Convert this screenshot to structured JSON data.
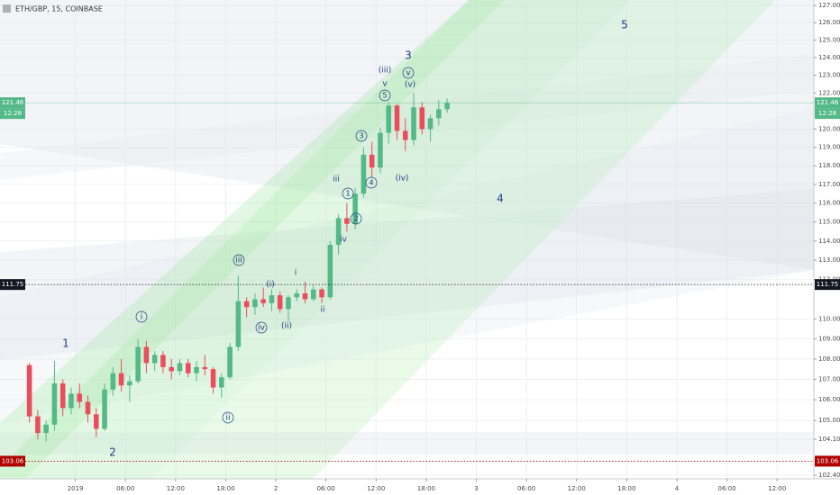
{
  "chart_data": {
    "type": "candlestick",
    "title": "ETH/GBP, 15, COINBASE",
    "log_scale": true,
    "grid": true,
    "up_color": "#53b987",
    "down_color": "#eb4d5c",
    "ylim": [
      102.4,
      127
    ],
    "yticks": [
      {
        "value": 127,
        "label": "127.00"
      },
      {
        "value": 126,
        "label": "126.00"
      },
      {
        "value": 125,
        "label": "125.00"
      },
      {
        "value": 124,
        "label": "124.00"
      },
      {
        "value": 123,
        "label": "123.00"
      },
      {
        "value": 122,
        "label": "122.00"
      },
      {
        "value": 120,
        "label": "120.00"
      },
      {
        "value": 119,
        "label": "119.00"
      },
      {
        "value": 118,
        "label": "118.00"
      },
      {
        "value": 117,
        "label": "117.00"
      },
      {
        "value": 116,
        "label": "116.00"
      },
      {
        "value": 115,
        "label": "115.00"
      },
      {
        "value": 114,
        "label": "114.00"
      },
      {
        "value": 113,
        "label": "113.00"
      },
      {
        "value": 112,
        "label": "112.00"
      },
      {
        "value": 110,
        "label": "110.00"
      },
      {
        "value": 109,
        "label": "109.00"
      },
      {
        "value": 108,
        "label": "108.00"
      },
      {
        "value": 107,
        "label": "107.00"
      },
      {
        "value": 106,
        "label": "106.00"
      },
      {
        "value": 105,
        "label": "105.00"
      },
      {
        "value": 104.1,
        "label": "104.10"
      },
      {
        "value": 102.4,
        "label": "102.40"
      }
    ],
    "xlim": [
      0,
      94.4
    ],
    "xticks": [
      {
        "value": 6,
        "label": "2019"
      },
      {
        "value": 12,
        "label": "06:00"
      },
      {
        "value": 18,
        "label": "12:00"
      },
      {
        "value": 24,
        "label": "18:00"
      },
      {
        "value": 30,
        "label": "2"
      },
      {
        "value": 36,
        "label": "06:00"
      },
      {
        "value": 42,
        "label": "12:00"
      },
      {
        "value": 48,
        "label": "18:00"
      },
      {
        "value": 54,
        "label": "3"
      },
      {
        "value": 60,
        "label": "06:00"
      },
      {
        "value": 66,
        "label": "12:00"
      },
      {
        "value": 72,
        "label": "18:00"
      },
      {
        "value": 78,
        "label": "4"
      },
      {
        "value": 84,
        "label": "06:00"
      },
      {
        "value": 90,
        "label": "12:00"
      }
    ],
    "x": [
      0.5,
      1.5,
      2.5,
      3.5,
      4.5,
      5.5,
      6.5,
      7.5,
      8.5,
      9.5,
      10.5,
      11.5,
      12.5,
      13.5,
      14.5,
      15.5,
      16.5,
      17.5,
      18.5,
      19.5,
      20.5,
      21.5,
      22.5,
      23.5,
      24.5,
      25.5,
      26.5,
      27.5,
      28.5,
      29.5,
      30.5,
      31.5,
      32.5,
      33.5,
      34.5,
      35.5,
      36.5,
      37.5,
      38.5,
      39.5,
      40.5,
      41.5,
      42.5,
      43.5,
      44.5,
      45.5,
      46.5,
      47.5,
      48.5,
      49.5,
      50.5
    ],
    "open": [
      107.7,
      105.2,
      104.4,
      104.8,
      106.8,
      105.6,
      106.3,
      105.9,
      105.3,
      104.6,
      106.5,
      107.3,
      106.7,
      106.9,
      108.6,
      107.8,
      108.2,
      107.6,
      107.4,
      107.8,
      107.3,
      107.6,
      107.5,
      106.6,
      107.1,
      108.6,
      110.9,
      110.6,
      111.0,
      110.8,
      111.2,
      110.5,
      111.1,
      111.3,
      111.0,
      111.5,
      111.1,
      113.8,
      115.2,
      114.9,
      116.5,
      118.6,
      117.9,
      119.8,
      121.3,
      119.9,
      119.4,
      121.2,
      120.0,
      120.6,
      121.1
    ],
    "high": [
      107.8,
      105.5,
      105.0,
      107.9,
      107.0,
      106.6,
      106.8,
      106.2,
      105.6,
      106.8,
      107.6,
      108.0,
      107.2,
      109.0,
      108.9,
      108.4,
      108.4,
      108.0,
      108.0,
      108.0,
      107.9,
      108.2,
      107.6,
      107.3,
      108.8,
      112.2,
      111.1,
      111.3,
      111.6,
      111.5,
      111.4,
      111.2,
      111.5,
      111.9,
      111.7,
      111.6,
      114.0,
      115.4,
      116.0,
      116.8,
      119.0,
      119.3,
      120.1,
      121.5,
      121.4,
      120.6,
      122.0,
      121.5,
      120.8,
      121.6,
      121.7
    ],
    "low": [
      104.9,
      104.1,
      104.0,
      104.5,
      105.2,
      105.3,
      105.6,
      104.9,
      104.2,
      104.5,
      106.2,
      106.4,
      105.9,
      106.8,
      107.3,
      107.4,
      107.3,
      107.0,
      107.2,
      107.1,
      106.9,
      107.2,
      106.3,
      106.1,
      107.0,
      108.4,
      110.1,
      110.2,
      110.6,
      110.4,
      110.3,
      109.9,
      110.9,
      110.8,
      110.9,
      110.8,
      111.0,
      113.3,
      114.5,
      114.6,
      116.3,
      117.4,
      117.6,
      119.2,
      119.4,
      118.8,
      119.1,
      119.7,
      119.3,
      120.2,
      120.9
    ],
    "close": [
      105.2,
      104.4,
      104.8,
      106.8,
      105.6,
      106.3,
      105.9,
      105.3,
      104.6,
      106.5,
      107.3,
      106.7,
      106.9,
      108.6,
      107.8,
      108.2,
      107.6,
      107.4,
      107.8,
      107.3,
      107.6,
      107.5,
      106.6,
      107.1,
      108.6,
      110.9,
      110.6,
      111.0,
      110.8,
      111.2,
      110.5,
      111.1,
      111.3,
      111.0,
      111.5,
      111.1,
      113.8,
      115.2,
      114.9,
      116.5,
      118.6,
      117.9,
      119.8,
      121.3,
      119.9,
      119.4,
      121.2,
      120.0,
      120.6,
      121.1,
      121.46
    ],
    "price_lines": [
      {
        "value": 121.46,
        "color": "#53b987",
        "style": "solid"
      },
      {
        "value": 111.75,
        "color": "#131722",
        "style": "dotted"
      },
      {
        "value": 103.06,
        "color": "#b00000",
        "style": "dotted"
      }
    ],
    "countdown": "12:28",
    "annotations": [
      {
        "text": "1",
        "circled": false
      },
      {
        "text": "2",
        "circled": false
      },
      {
        "text": "i",
        "circled": true
      },
      {
        "text": "ii",
        "circled": true
      },
      {
        "text": "iii",
        "circled": true
      },
      {
        "text": "(i)",
        "circled": false
      },
      {
        "text": "iv",
        "circled": true
      },
      {
        "text": "(ii)",
        "circled": false
      },
      {
        "text": "i",
        "circled": false
      },
      {
        "text": "ii",
        "circled": false
      },
      {
        "text": "iii",
        "circled": false
      },
      {
        "text": "iv",
        "circled": false
      },
      {
        "text": "1",
        "circled": true
      },
      {
        "text": "2",
        "circled": true
      },
      {
        "text": "3",
        "circled": true
      },
      {
        "text": "4",
        "circled": true
      },
      {
        "text": "5",
        "circled": true
      },
      {
        "text": "v",
        "circled": false
      },
      {
        "text": "(iii)",
        "circled": false
      },
      {
        "text": "3",
        "circled": false
      },
      {
        "text": "v",
        "circled": true
      },
      {
        "text": "(v)",
        "circled": false
      },
      {
        "text": "(iv)",
        "circled": false
      },
      {
        "text": "4",
        "circled": false
      },
      {
        "text": "5",
        "circled": false
      }
    ]
  }
}
